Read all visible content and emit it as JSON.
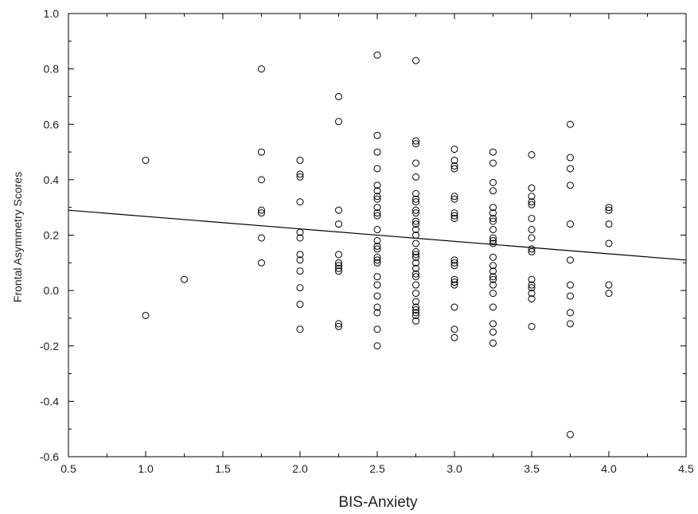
{
  "chart_data": {
    "type": "scatter",
    "title": "",
    "xlabel": "BIS-Anxiety",
    "ylabel": "Frontal Asymmetry Scores",
    "xlim": [
      0.5,
      4.5
    ],
    "ylim": [
      -0.6,
      1.0
    ],
    "x_major_ticks": [
      0.5,
      1.0,
      1.5,
      2.0,
      2.5,
      3.0,
      3.5,
      4.0,
      4.5
    ],
    "x_tick_labels": [
      "0.5",
      "1.0",
      "1.5",
      "2.0",
      "2.5",
      "3.0",
      "3.5",
      "4.0",
      "4.5"
    ],
    "y_major_ticks": [
      -0.6,
      -0.4,
      -0.2,
      0.0,
      0.2,
      0.4,
      0.6,
      0.8,
      1.0
    ],
    "y_tick_labels": [
      "-0.6",
      "-0.4",
      "-0.2",
      "0.0",
      "0.2",
      "0.4",
      "0.6",
      "0.8",
      "1.0"
    ],
    "grid": false,
    "marker": "open-circle",
    "colors": {
      "marker": "#000000",
      "line": "#000000",
      "frame": "#000000"
    },
    "points": [
      [
        1.0,
        0.47
      ],
      [
        1.0,
        -0.09
      ],
      [
        1.25,
        0.04
      ],
      [
        1.75,
        0.8
      ],
      [
        1.75,
        0.5
      ],
      [
        1.75,
        0.4
      ],
      [
        1.75,
        0.29
      ],
      [
        1.75,
        0.28
      ],
      [
        1.75,
        0.19
      ],
      [
        1.75,
        0.1
      ],
      [
        2.0,
        0.47
      ],
      [
        2.0,
        0.42
      ],
      [
        2.0,
        0.41
      ],
      [
        2.0,
        0.32
      ],
      [
        2.0,
        0.21
      ],
      [
        2.0,
        0.19
      ],
      [
        2.0,
        0.13
      ],
      [
        2.0,
        0.11
      ],
      [
        2.0,
        0.07
      ],
      [
        2.0,
        0.01
      ],
      [
        2.0,
        -0.05
      ],
      [
        2.0,
        -0.14
      ],
      [
        2.25,
        0.7
      ],
      [
        2.25,
        0.61
      ],
      [
        2.25,
        0.29
      ],
      [
        2.25,
        0.24
      ],
      [
        2.25,
        0.13
      ],
      [
        2.25,
        0.1
      ],
      [
        2.25,
        0.09
      ],
      [
        2.25,
        0.08
      ],
      [
        2.25,
        0.07
      ],
      [
        2.25,
        -0.12
      ],
      [
        2.25,
        -0.13
      ],
      [
        2.5,
        0.85
      ],
      [
        2.5,
        0.56
      ],
      [
        2.5,
        0.5
      ],
      [
        2.5,
        0.44
      ],
      [
        2.5,
        0.38
      ],
      [
        2.5,
        0.36
      ],
      [
        2.5,
        0.34
      ],
      [
        2.5,
        0.33
      ],
      [
        2.5,
        0.3
      ],
      [
        2.5,
        0.28
      ],
      [
        2.5,
        0.27
      ],
      [
        2.5,
        0.22
      ],
      [
        2.5,
        0.18
      ],
      [
        2.5,
        0.16
      ],
      [
        2.5,
        0.15
      ],
      [
        2.5,
        0.12
      ],
      [
        2.5,
        0.11
      ],
      [
        2.5,
        0.1
      ],
      [
        2.5,
        0.05
      ],
      [
        2.5,
        0.02
      ],
      [
        2.5,
        -0.02
      ],
      [
        2.5,
        -0.06
      ],
      [
        2.5,
        -0.08
      ],
      [
        2.5,
        -0.14
      ],
      [
        2.5,
        -0.2
      ],
      [
        2.75,
        0.83
      ],
      [
        2.75,
        0.54
      ],
      [
        2.75,
        0.53
      ],
      [
        2.75,
        0.46
      ],
      [
        2.75,
        0.41
      ],
      [
        2.75,
        0.35
      ],
      [
        2.75,
        0.33
      ],
      [
        2.75,
        0.32
      ],
      [
        2.75,
        0.29
      ],
      [
        2.75,
        0.28
      ],
      [
        2.75,
        0.25
      ],
      [
        2.75,
        0.24
      ],
      [
        2.75,
        0.22
      ],
      [
        2.75,
        0.2
      ],
      [
        2.75,
        0.17
      ],
      [
        2.75,
        0.14
      ],
      [
        2.75,
        0.13
      ],
      [
        2.75,
        0.12
      ],
      [
        2.75,
        0.1
      ],
      [
        2.75,
        0.08
      ],
      [
        2.75,
        0.06
      ],
      [
        2.75,
        0.05
      ],
      [
        2.75,
        0.02
      ],
      [
        2.75,
        -0.01
      ],
      [
        2.75,
        -0.04
      ],
      [
        2.75,
        -0.06
      ],
      [
        2.75,
        -0.07
      ],
      [
        2.75,
        -0.08
      ],
      [
        2.75,
        -0.09
      ],
      [
        2.75,
        -0.11
      ],
      [
        3.0,
        0.51
      ],
      [
        3.0,
        0.47
      ],
      [
        3.0,
        0.45
      ],
      [
        3.0,
        0.44
      ],
      [
        3.0,
        0.34
      ],
      [
        3.0,
        0.33
      ],
      [
        3.0,
        0.28
      ],
      [
        3.0,
        0.27
      ],
      [
        3.0,
        0.26
      ],
      [
        3.0,
        0.11
      ],
      [
        3.0,
        0.1
      ],
      [
        3.0,
        0.09
      ],
      [
        3.0,
        0.04
      ],
      [
        3.0,
        0.03
      ],
      [
        3.0,
        0.02
      ],
      [
        3.0,
        -0.06
      ],
      [
        3.0,
        -0.14
      ],
      [
        3.0,
        -0.17
      ],
      [
        3.25,
        0.5
      ],
      [
        3.25,
        0.46
      ],
      [
        3.25,
        0.39
      ],
      [
        3.25,
        0.36
      ],
      [
        3.25,
        0.3
      ],
      [
        3.25,
        0.28
      ],
      [
        3.25,
        0.26
      ],
      [
        3.25,
        0.25
      ],
      [
        3.25,
        0.22
      ],
      [
        3.25,
        0.19
      ],
      [
        3.25,
        0.18
      ],
      [
        3.25,
        0.17
      ],
      [
        3.25,
        0.12
      ],
      [
        3.25,
        0.09
      ],
      [
        3.25,
        0.07
      ],
      [
        3.25,
        0.05
      ],
      [
        3.25,
        0.04
      ],
      [
        3.25,
        0.02
      ],
      [
        3.25,
        -0.01
      ],
      [
        3.25,
        -0.06
      ],
      [
        3.25,
        -0.12
      ],
      [
        3.25,
        -0.15
      ],
      [
        3.25,
        -0.19
      ],
      [
        3.5,
        0.49
      ],
      [
        3.5,
        0.37
      ],
      [
        3.5,
        0.34
      ],
      [
        3.5,
        0.32
      ],
      [
        3.5,
        0.31
      ],
      [
        3.5,
        0.26
      ],
      [
        3.5,
        0.22
      ],
      [
        3.5,
        0.19
      ],
      [
        3.5,
        0.15
      ],
      [
        3.5,
        0.14
      ],
      [
        3.5,
        0.04
      ],
      [
        3.5,
        0.02
      ],
      [
        3.5,
        0.01
      ],
      [
        3.5,
        -0.01
      ],
      [
        3.5,
        -0.03
      ],
      [
        3.5,
        -0.13
      ],
      [
        3.75,
        0.6
      ],
      [
        3.75,
        0.48
      ],
      [
        3.75,
        0.44
      ],
      [
        3.75,
        0.38
      ],
      [
        3.75,
        0.24
      ],
      [
        3.75,
        0.11
      ],
      [
        3.75,
        0.02
      ],
      [
        3.75,
        -0.02
      ],
      [
        3.75,
        -0.08
      ],
      [
        3.75,
        -0.12
      ],
      [
        3.75,
        -0.52
      ],
      [
        4.0,
        0.3
      ],
      [
        4.0,
        0.29
      ],
      [
        4.0,
        0.24
      ],
      [
        4.0,
        0.17
      ],
      [
        4.0,
        0.02
      ],
      [
        4.0,
        -0.01
      ]
    ],
    "regression_line": {
      "x": [
        0.5,
        4.5
      ],
      "y": [
        0.29,
        0.11
      ]
    }
  }
}
